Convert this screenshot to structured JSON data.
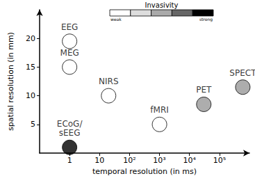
{
  "chart_data": {
    "type": "scatter",
    "x_label": "temporal resolution (in ms)",
    "y_label": "spatial resolution (in mm)",
    "log": "x",
    "grid": false,
    "xlim": [
      0.1,
      1000000
    ],
    "xticks": [
      1,
      10,
      {
        "value": 100,
        "label": "10²"
      },
      {
        "value": 1000,
        "label": "10³"
      },
      {
        "value": 10000,
        "label": "10⁴"
      },
      {
        "value": 100000,
        "label": "10⁵"
      }
    ],
    "ylim": [
      0,
      25
    ],
    "yticks": [
      5,
      10,
      15,
      20
    ],
    "point_labels": [
      "EEG",
      "MEG",
      "ECoG/sEEG",
      "NIRS",
      "fMRI",
      "PET",
      "SPECT"
    ],
    "x": [
      1,
      1,
      1,
      20,
      1000,
      30000,
      600000
    ],
    "values": [
      19.5,
      15,
      1,
      10,
      5,
      8.5,
      11.5
    ],
    "colors": [
      "#ffffff",
      "#ffffff",
      "#000000",
      "#ffffff",
      "#ffffff",
      "#999999",
      "#999999"
    ],
    "invasivity_scale": {
      "title": "Invasivity",
      "low_label": "weak",
      "high_label": "strong",
      "colors": [
        "#ffffff",
        "#dddddd",
        "#aaaaaa",
        "#666666",
        "#000000"
      ]
    }
  }
}
